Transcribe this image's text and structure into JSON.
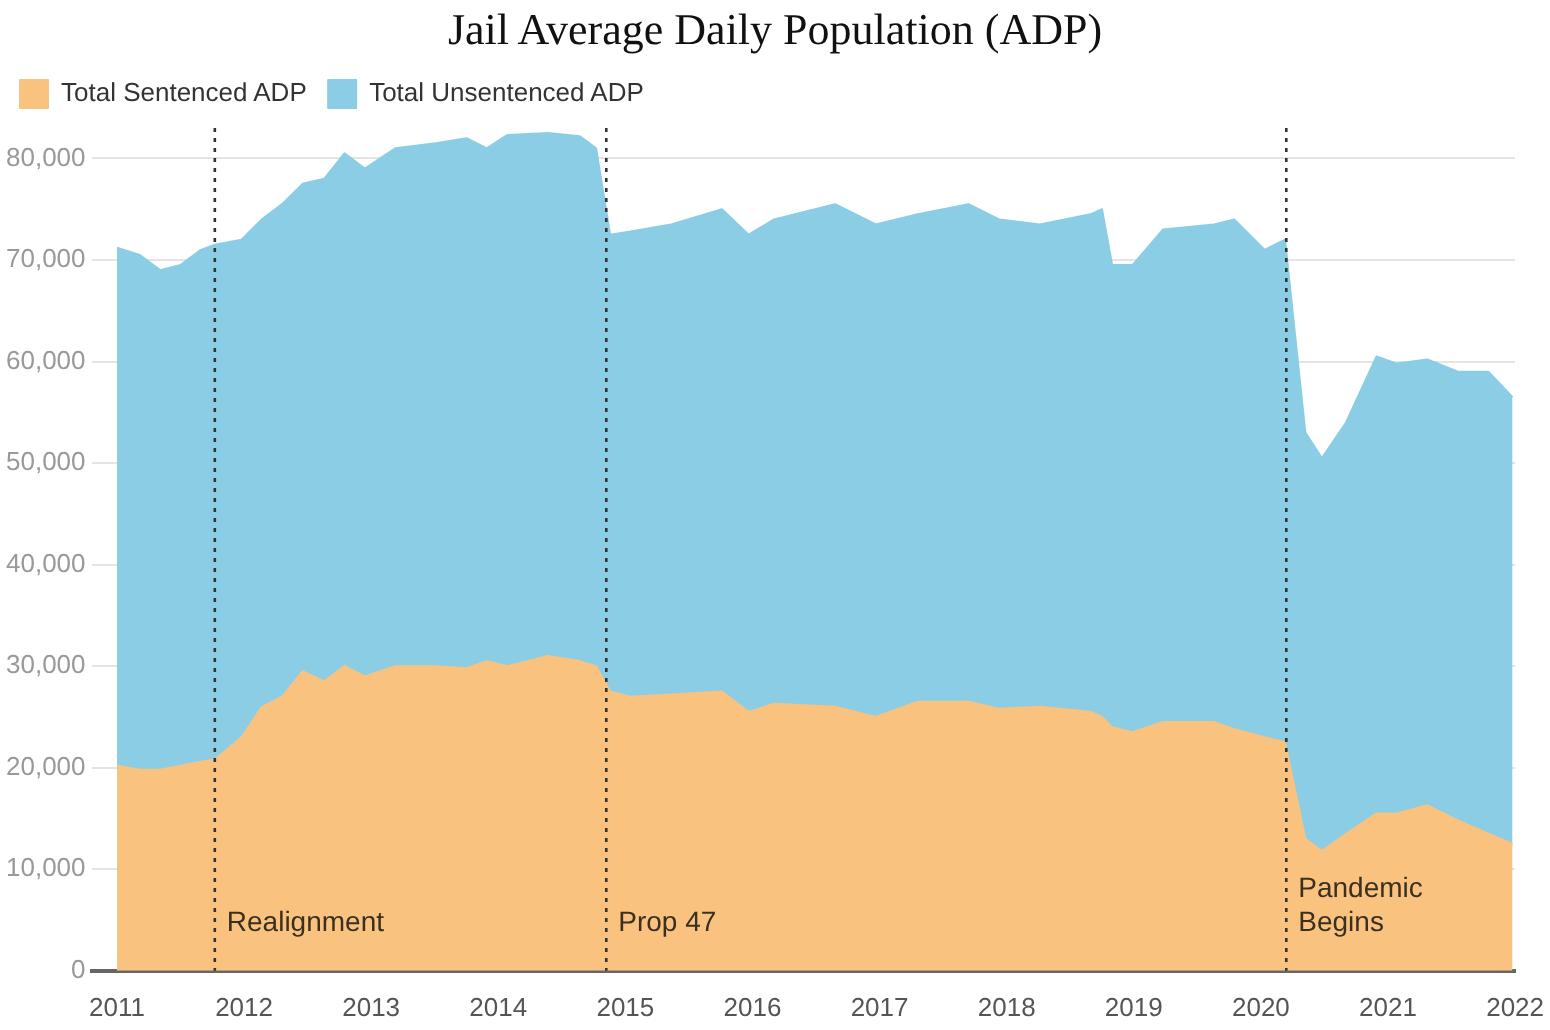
{
  "chart_data": {
    "type": "area",
    "title": "Jail Average Daily Population (ADP)",
    "stacked": true,
    "legend": "top left",
    "grid": "y",
    "marker": "none",
    "x": [
      2011.0,
      2011.18,
      2011.34,
      2011.5,
      2011.66,
      2011.77,
      2011.98,
      2012.14,
      2012.3,
      2012.46,
      2012.63,
      2012.79,
      2012.95,
      2013.19,
      2013.51,
      2013.75,
      2013.91,
      2014.07,
      2014.39,
      2014.64,
      2014.77,
      2014.88,
      2015.04,
      2015.36,
      2015.76,
      2015.97,
      2016.17,
      2016.65,
      2016.97,
      2017.3,
      2017.7,
      2017.94,
      2018.26,
      2018.66,
      2018.75,
      2018.83,
      2018.99,
      2019.23,
      2019.63,
      2019.79,
      2020.03,
      2020.19,
      2020.35,
      2020.48,
      2020.67,
      2020.91,
      2021.07,
      2021.31,
      2021.55,
      2021.79,
      2021.98
    ],
    "series": [
      {
        "name": "Total Sentenced ADP",
        "color": "#f9c27f",
        "values": [
          20200,
          19800,
          19800,
          20200,
          20600,
          20800,
          23000,
          26000,
          27000,
          29500,
          28500,
          30000,
          29000,
          30000,
          30000,
          29800,
          30500,
          30000,
          31000,
          30500,
          30000,
          27500,
          27000,
          27200,
          27500,
          25500,
          26300,
          26000,
          25000,
          26500,
          26500,
          25800,
          26000,
          25500,
          25000,
          24000,
          23500,
          24500,
          24500,
          23800,
          23000,
          22500,
          13000,
          11800,
          13500,
          15500,
          15500,
          16300,
          14800,
          13500,
          12500
        ]
      },
      {
        "name": "Total Unsentenced ADP",
        "color": "#8bcde4",
        "values": [
          51000,
          50700,
          49200,
          49300,
          50400,
          50700,
          49000,
          48000,
          48500,
          48000,
          49500,
          50500,
          50000,
          51000,
          51500,
          52200,
          50500,
          52300,
          51500,
          51700,
          51000,
          45000,
          45800,
          46300,
          47500,
          47000,
          47700,
          49500,
          48500,
          48000,
          49000,
          48200,
          47500,
          49000,
          50000,
          45500,
          46000,
          48500,
          49000,
          50200,
          48000,
          49500,
          40000,
          38700,
          40500,
          45000,
          44300,
          43900,
          44200,
          45500,
          44000
        ]
      }
    ],
    "xlim": [
      2010.8,
      2022
    ],
    "xticks": [
      2011,
      2012,
      2013,
      2014,
      2015,
      2016,
      2017,
      2018,
      2019,
      2020,
      2021,
      2022
    ],
    "ylim": [
      0,
      83000
    ],
    "yticks": [
      {
        "value": 0,
        "label": "0"
      },
      {
        "value": 10000,
        "label": "10,000"
      },
      {
        "value": 20000,
        "label": "20,000"
      },
      {
        "value": 30000,
        "label": "30,000"
      },
      {
        "value": 40000,
        "label": "40,000"
      },
      {
        "value": 50000,
        "label": "50,000"
      },
      {
        "value": 60000,
        "label": "60,000"
      },
      {
        "value": 70000,
        "label": "70,000"
      },
      {
        "value": 80000,
        "label": "80,000"
      }
    ],
    "ref_lines": [
      {
        "axis": "x",
        "value": 2011.77,
        "label": "Realignment",
        "color": "#333333",
        "line_style": "dotted"
      },
      {
        "axis": "x",
        "value": 2014.85,
        "label": "Prop 47",
        "color": "#333333",
        "line_style": "dotted"
      },
      {
        "axis": "x",
        "value": 2020.2,
        "label": "Pandemic Begins",
        "color": "#333333",
        "line_style": "dotted"
      }
    ]
  }
}
